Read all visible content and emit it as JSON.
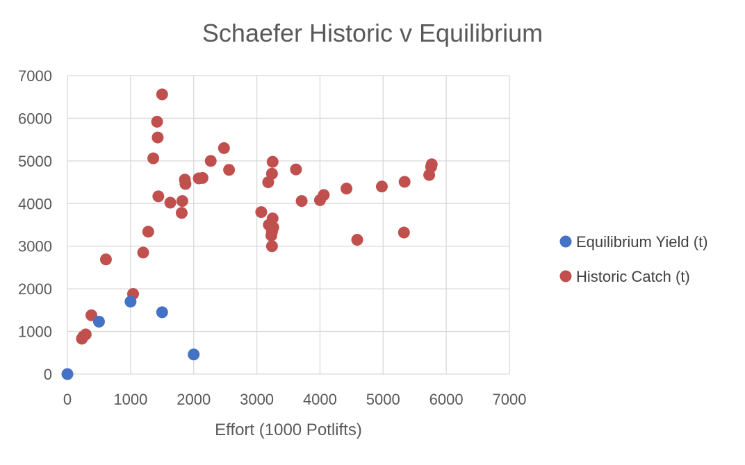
{
  "chart_data": {
    "type": "scatter",
    "title": "Schaefer Historic v Equilibrium",
    "xlabel": "Effort (1000 Potlifts)",
    "ylabel": "",
    "xlim": [
      0,
      7000
    ],
    "ylim": [
      0,
      7000
    ],
    "x_ticks": [
      "0",
      "1000",
      "2000",
      "3000",
      "4000",
      "5000",
      "6000",
      "7000"
    ],
    "y_ticks": [
      "0",
      "1000",
      "2000",
      "3000",
      "4000",
      "5000",
      "6000",
      "7000"
    ],
    "grid": true,
    "legend_position": "right",
    "series": [
      {
        "name": "Equilibrium Yield (t)",
        "color": "#4472c4",
        "points": [
          [
            0,
            0
          ],
          [
            500,
            1230
          ],
          [
            1000,
            1700
          ],
          [
            1500,
            1450
          ],
          [
            2000,
            460
          ]
        ]
      },
      {
        "name": "Historic Catch (t)",
        "color": "#c0504d",
        "points": [
          [
            230,
            830
          ],
          [
            250,
            880
          ],
          [
            290,
            930
          ],
          [
            380,
            1380
          ],
          [
            610,
            2690
          ],
          [
            1040,
            1880
          ],
          [
            1200,
            2850
          ],
          [
            1280,
            3340
          ],
          [
            1360,
            5060
          ],
          [
            1420,
            5920
          ],
          [
            1430,
            5550
          ],
          [
            1440,
            4170
          ],
          [
            1500,
            6560
          ],
          [
            1630,
            4020
          ],
          [
            1810,
            3780
          ],
          [
            1820,
            4060
          ],
          [
            1860,
            4560
          ],
          [
            1870,
            4460
          ],
          [
            2080,
            4590
          ],
          [
            2140,
            4600
          ],
          [
            2270,
            5000
          ],
          [
            2480,
            5300
          ],
          [
            2560,
            4790
          ],
          [
            3070,
            3800
          ],
          [
            3180,
            4500
          ],
          [
            3190,
            3500
          ],
          [
            3230,
            3250
          ],
          [
            3240,
            4700
          ],
          [
            3240,
            3340
          ],
          [
            3240,
            3000
          ],
          [
            3250,
            4980
          ],
          [
            3250,
            3650
          ],
          [
            3260,
            3440
          ],
          [
            3620,
            4800
          ],
          [
            3710,
            4060
          ],
          [
            4000,
            4080
          ],
          [
            4060,
            4200
          ],
          [
            4420,
            4350
          ],
          [
            4590,
            3150
          ],
          [
            4980,
            4400
          ],
          [
            5330,
            3320
          ],
          [
            5340,
            4510
          ],
          [
            5730,
            4670
          ],
          [
            5760,
            4860
          ],
          [
            5770,
            4920
          ]
        ]
      }
    ]
  }
}
